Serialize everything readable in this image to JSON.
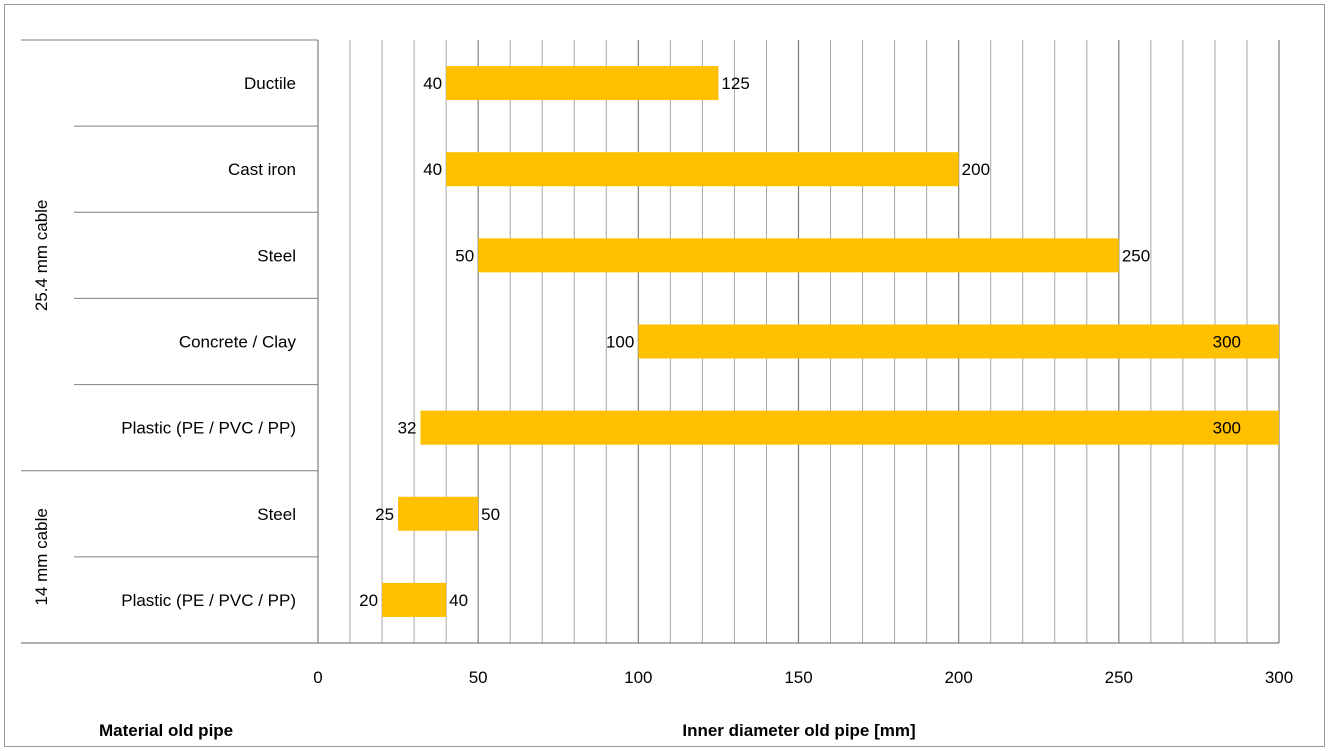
{
  "chart_data": {
    "type": "bar",
    "orientation": "horizontal",
    "subtype": "floating-range",
    "title": "",
    "xlabel": "Inner diameter old pipe [mm]",
    "ylabel": "Material old pipe",
    "xlim": [
      0,
      300
    ],
    "xticks": [
      "0",
      "50",
      "100",
      "150",
      "200",
      "250",
      "300"
    ],
    "minor_grid_step": 10,
    "grid": true,
    "legend": "none",
    "bar_color": "#FFC000",
    "groups": [
      {
        "label": "25.4 mm cable",
        "categories": [
          "Ductile",
          "Cast iron",
          "Steel",
          "Concrete / Clay",
          "Plastic (PE / PVC / PP)"
        ]
      },
      {
        "label": "14 mm cable",
        "categories": [
          "Steel",
          "Plastic (PE / PVC / PP)"
        ]
      }
    ],
    "bars": [
      {
        "group": "25.4 mm cable",
        "category": "Ductile",
        "min": 40,
        "max": 125
      },
      {
        "group": "25.4 mm cable",
        "category": "Cast iron",
        "min": 40,
        "max": 200
      },
      {
        "group": "25.4 mm cable",
        "category": "Steel",
        "min": 50,
        "max": 250
      },
      {
        "group": "25.4 mm cable",
        "category": "Concrete / Clay",
        "min": 100,
        "max": 300
      },
      {
        "group": "25.4 mm cable",
        "category": "Plastic (PE / PVC / PP)",
        "min": 32,
        "max": 300
      },
      {
        "group": "14 mm cable",
        "category": "Steel",
        "min": 25,
        "max": 50
      },
      {
        "group": "14 mm cable",
        "category": "Plastic (PE / PVC / PP)",
        "min": 20,
        "max": 40
      }
    ]
  }
}
